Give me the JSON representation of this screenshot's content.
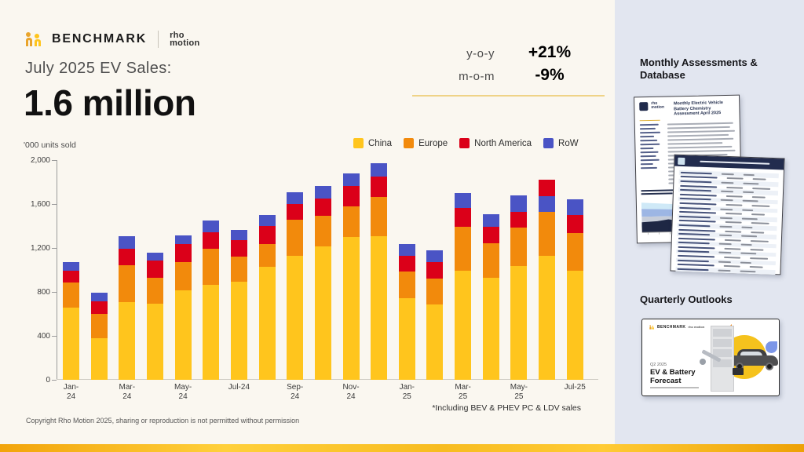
{
  "header": {
    "brand": {
      "benchmark": "BENCHMARK",
      "rho_line1": "rho",
      "rho_line2": "motion"
    },
    "title": "July 2025 EV Sales:",
    "headline": "1.6 million",
    "stats": [
      {
        "label": "y-o-y",
        "value": "+21%"
      },
      {
        "label": "m-o-m",
        "value": "-9%"
      }
    ]
  },
  "chart_data": {
    "type": "bar",
    "stacked": true,
    "title": "July 2025 EV Sales: 1.6 million",
    "unit_label": "'000 units sold",
    "categories": [
      "Jan-24",
      "Feb-24",
      "Mar-24",
      "Apr-24",
      "May-24",
      "Jun-24",
      "Jul-24",
      "Aug-24",
      "Sep-24",
      "Oct-24",
      "Nov-24",
      "Dec-24",
      "Jan-25",
      "Feb-25",
      "Mar-25",
      "Apr-25",
      "May-25",
      "Jun-25",
      "Jul-25"
    ],
    "series": [
      {
        "name": "China",
        "color": "#FFC51D",
        "values": [
          660,
          380,
          710,
          690,
          815,
          865,
          890,
          1030,
          1130,
          1215,
          1300,
          1310,
          740,
          685,
          995,
          930,
          1035,
          1130,
          995
        ]
      },
      {
        "name": "Europe",
        "color": "#F28A0C",
        "values": [
          225,
          220,
          330,
          240,
          255,
          330,
          230,
          205,
          330,
          275,
          280,
          355,
          245,
          240,
          400,
          310,
          350,
          400,
          340
        ]
      },
      {
        "name": "North America",
        "color": "#DB0019",
        "values": [
          110,
          115,
          155,
          155,
          165,
          145,
          155,
          165,
          140,
          160,
          185,
          185,
          145,
          150,
          170,
          155,
          145,
          150,
          165
        ]
      },
      {
        "name": "RoW",
        "color": "#4A54C5",
        "values": [
          80,
          80,
          110,
          75,
          80,
          110,
          90,
          100,
          110,
          115,
          115,
          120,
          105,
          105,
          135,
          110,
          150,
          140,
          145
        ]
      }
    ],
    "stack_order_note": "bottom to top: China, Europe, North America, RoW; Jun-25 drawn with RoW below North America",
    "ylim": [
      0,
      2000
    ],
    "yticks": [
      0,
      400,
      800,
      1200,
      1600,
      2000
    ],
    "ytick_labels": [
      "0",
      "400",
      "800",
      "1,200",
      "1,600",
      "2,000"
    ],
    "x_tick_labels": [
      [
        "Jan-",
        "24"
      ],
      [
        "Mar-",
        "24"
      ],
      [
        "May-",
        "24"
      ],
      [
        "Jul-24"
      ],
      [
        "Sep-",
        "24"
      ],
      [
        "Nov-",
        "24"
      ],
      [
        "Jan-",
        "25"
      ],
      [
        "Mar-",
        "25"
      ],
      [
        "May-",
        "25"
      ],
      [
        "Jul-25"
      ]
    ],
    "legend_position": "top-right",
    "grid": false,
    "footnote": "*Including BEV & PHEV PC & LDV sales"
  },
  "sidebar": {
    "section1_title": "Monthly Assessments & Database",
    "doc1": {
      "logo_line1": "rho",
      "logo_line2": "motion",
      "title": "Monthly Electric Vehicle Battery Chemistry Assessment April 2025"
    },
    "section2_title": "Quarterly Outlooks",
    "doc3": {
      "brand": "BENCHMARK",
      "rho": "rho motion",
      "subtitle": "Q2 2025",
      "title_line1": "EV & Battery",
      "title_line2": "Forecast"
    }
  },
  "footer": {
    "copyright": "Copyright Rho Motion 2025, sharing or reproduction is not permitted without permission"
  }
}
